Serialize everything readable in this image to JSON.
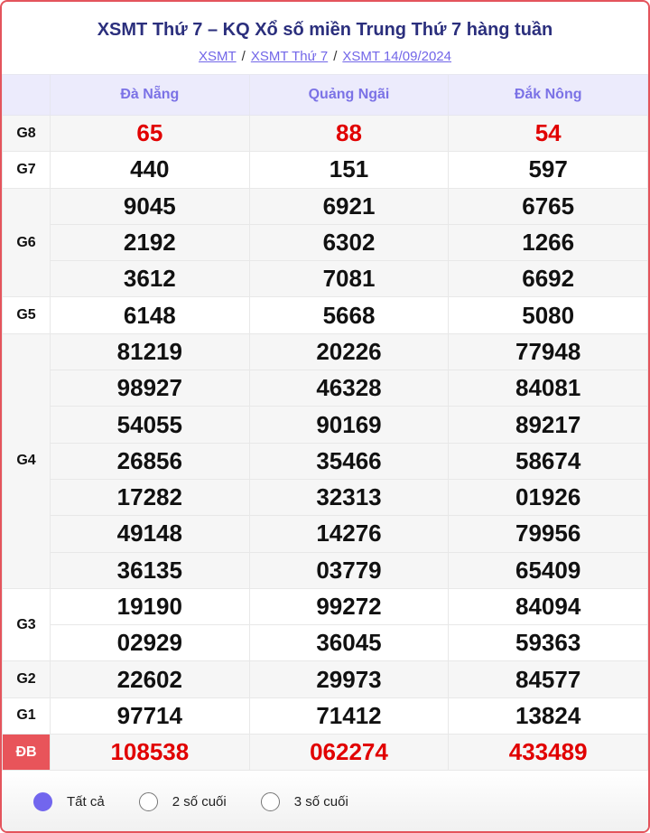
{
  "title": "XSMT Thứ 7 – KQ Xổ số miền Trung Thứ 7 hàng tuần",
  "breadcrumbs": [
    "XSMT",
    "XSMT Thứ 7",
    "XSMT 14/09/2024"
  ],
  "provinces": [
    "Đà Nẵng",
    "Quảng Ngãi",
    "Đắk Nông"
  ],
  "prizes": [
    {
      "label": "G8",
      "highlight": true,
      "values": [
        [
          "65"
        ],
        [
          "88"
        ],
        [
          "54"
        ]
      ]
    },
    {
      "label": "G7",
      "values": [
        [
          "440"
        ],
        [
          "151"
        ],
        [
          "597"
        ]
      ]
    },
    {
      "label": "G6",
      "values": [
        [
          "9045",
          "2192",
          "3612"
        ],
        [
          "6921",
          "6302",
          "7081"
        ],
        [
          "6765",
          "1266",
          "6692"
        ]
      ]
    },
    {
      "label": "G5",
      "values": [
        [
          "6148"
        ],
        [
          "5668"
        ],
        [
          "5080"
        ]
      ]
    },
    {
      "label": "G4",
      "values": [
        [
          "81219",
          "98927",
          "54055",
          "26856",
          "17282",
          "49148",
          "36135"
        ],
        [
          "20226",
          "46328",
          "90169",
          "35466",
          "32313",
          "14276",
          "03779"
        ],
        [
          "77948",
          "84081",
          "89217",
          "58674",
          "01926",
          "79956",
          "65409"
        ]
      ]
    },
    {
      "label": "G3",
      "values": [
        [
          "19190",
          "02929"
        ],
        [
          "99272",
          "36045"
        ],
        [
          "84094",
          "59363"
        ]
      ]
    },
    {
      "label": "G2",
      "values": [
        [
          "22602"
        ],
        [
          "29973"
        ],
        [
          "84577"
        ]
      ]
    },
    {
      "label": "G1",
      "values": [
        [
          "97714"
        ],
        [
          "71412"
        ],
        [
          "13824"
        ]
      ]
    },
    {
      "label": "ĐB",
      "highlight": true,
      "special": true,
      "values": [
        [
          "108538"
        ],
        [
          "062274"
        ],
        [
          "433489"
        ]
      ]
    }
  ],
  "filter": {
    "options": [
      "Tất cả",
      "2 số cuối",
      "3 số cuối"
    ],
    "selected": 0
  },
  "colors": {
    "accent": "#7266ee",
    "red": "#e10000",
    "title": "#2b2f7d"
  }
}
